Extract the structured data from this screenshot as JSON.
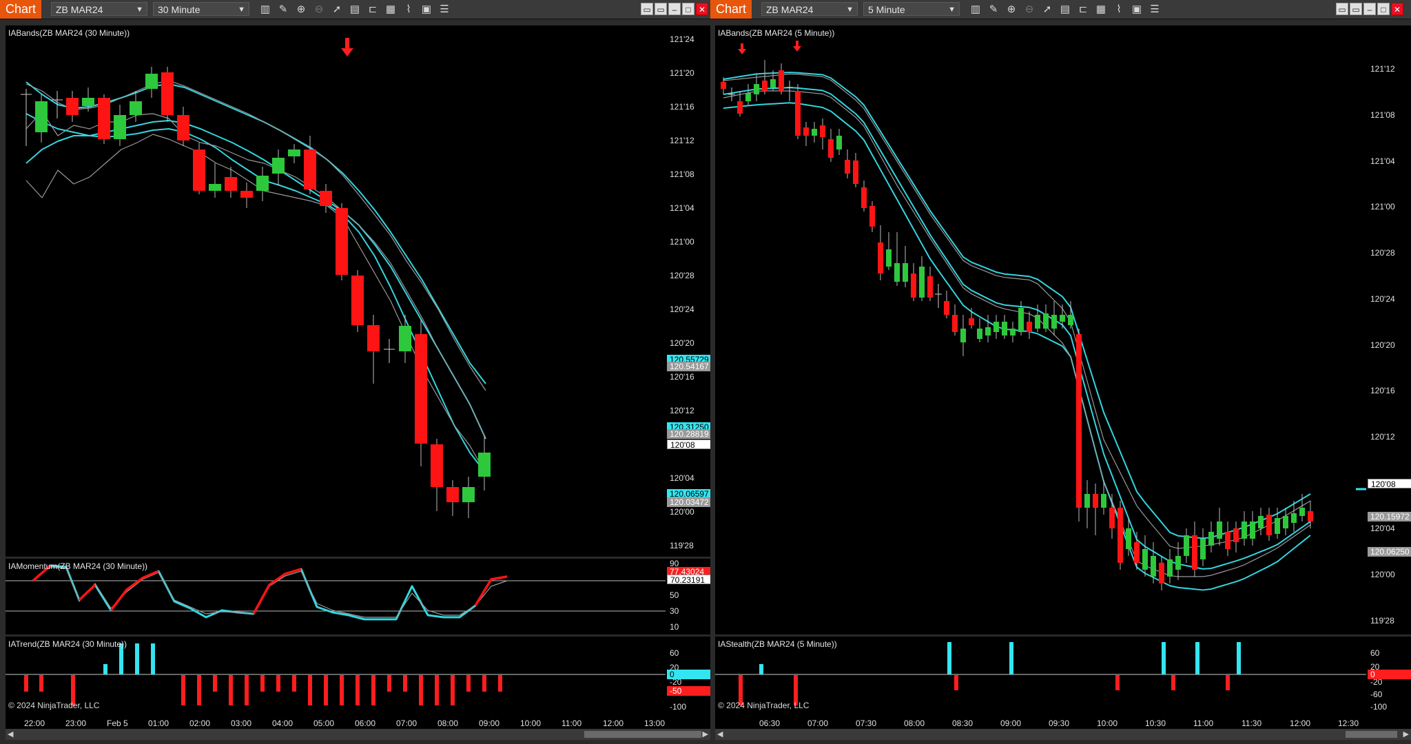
{
  "left": {
    "chart_button": "Chart",
    "instrument": "ZB MAR24",
    "interval": "30 Minute",
    "panels": {
      "price_title": "IABands(ZB MAR24 (30 Minute))",
      "momentum_title": "IAMomentum(ZB MAR24 (30 Minute))",
      "trend_title": "IATrend(ZB MAR24 (30 Minute))"
    },
    "price_ticks": [
      "121'24",
      "121'20",
      "121'16",
      "121'12",
      "121'08",
      "121'04",
      "121'00",
      "120'28",
      "120'24",
      "120'20",
      "120'16",
      "120'12",
      "120'08",
      "120'04",
      "120'00",
      "119'28"
    ],
    "price_badges": [
      {
        "text": "120.55729",
        "color": "#33e5f0"
      },
      {
        "text": "120.54167",
        "color": "#9a9a9a"
      },
      {
        "text": "120.31250",
        "color": "#33e5f0"
      },
      {
        "text": "120.28819",
        "color": "#9a9a9a"
      },
      {
        "text": "120'08",
        "color": "#ffffff"
      },
      {
        "text": "120.06597",
        "color": "#33e5f0"
      },
      {
        "text": "120.03472",
        "color": "#9a9a9a"
      }
    ],
    "momentum_ticks": [
      "90",
      "70",
      "50",
      "30",
      "10"
    ],
    "momentum_badges": [
      {
        "text": "77.43024",
        "color": "#ff1e1e"
      },
      {
        "text": "70.23191",
        "color": "#ffffff"
      }
    ],
    "trend_ticks": [
      "60",
      "20",
      "0",
      "-20",
      "-50",
      "-100"
    ],
    "trend_badges": [
      {
        "text": "0",
        "color": "#33e5f0"
      },
      {
        "text": "-50",
        "color": "#ff1e1e"
      }
    ],
    "time_ticks": [
      "22:00",
      "23:00",
      "Feb 5",
      "01:00",
      "02:00",
      "03:00",
      "04:00",
      "05:00",
      "06:00",
      "07:00",
      "08:00",
      "09:00",
      "10:00",
      "11:00",
      "12:00",
      "13:00"
    ],
    "copyright": "© 2024 NinjaTrader, LLC"
  },
  "right": {
    "chart_button": "Chart",
    "instrument": "ZB MAR24",
    "interval": "5 Minute",
    "panels": {
      "price_title": "IABands(ZB MAR24 (5 Minute))",
      "stealth_title": "IAStealth(ZB MAR24 (5 Minute))"
    },
    "price_ticks": [
      "121'12",
      "121'08",
      "121'04",
      "121'00",
      "120'28",
      "120'24",
      "120'20",
      "120'16",
      "120'12",
      "120'08",
      "120'04",
      "120'00",
      "119'28"
    ],
    "price_badges": [
      {
        "text": "120'08",
        "color": "#ffffff"
      },
      {
        "text": "120.15972",
        "color": "#9a9a9a"
      },
      {
        "text": "120.06250",
        "color": "#9a9a9a"
      }
    ],
    "stealth_ticks": [
      "60",
      "20",
      "0",
      "-20",
      "-60",
      "-100"
    ],
    "stealth_badges": [
      {
        "text": "0",
        "color": "#ff1e1e"
      }
    ],
    "time_ticks": [
      "06:30",
      "07:00",
      "07:30",
      "08:00",
      "08:30",
      "09:00",
      "09:30",
      "10:00",
      "10:30",
      "11:00",
      "11:30",
      "12:00",
      "12:30"
    ],
    "copyright": "© 2024 NinjaTrader, LLC"
  },
  "colors": {
    "up": "#2ec83c",
    "down": "#ff1414",
    "band": "#33d6e0",
    "ref": "#9a9a9a",
    "accent": "#e8560c"
  },
  "icons": [
    "bar-type-icon",
    "drawing-tool-icon",
    "zoom-in-icon",
    "zoom-out-icon",
    "pointer-icon",
    "data-box-icon",
    "templates-icon",
    "indicators-icon",
    "strategies-icon",
    "properties-icon",
    "list-icon"
  ]
}
